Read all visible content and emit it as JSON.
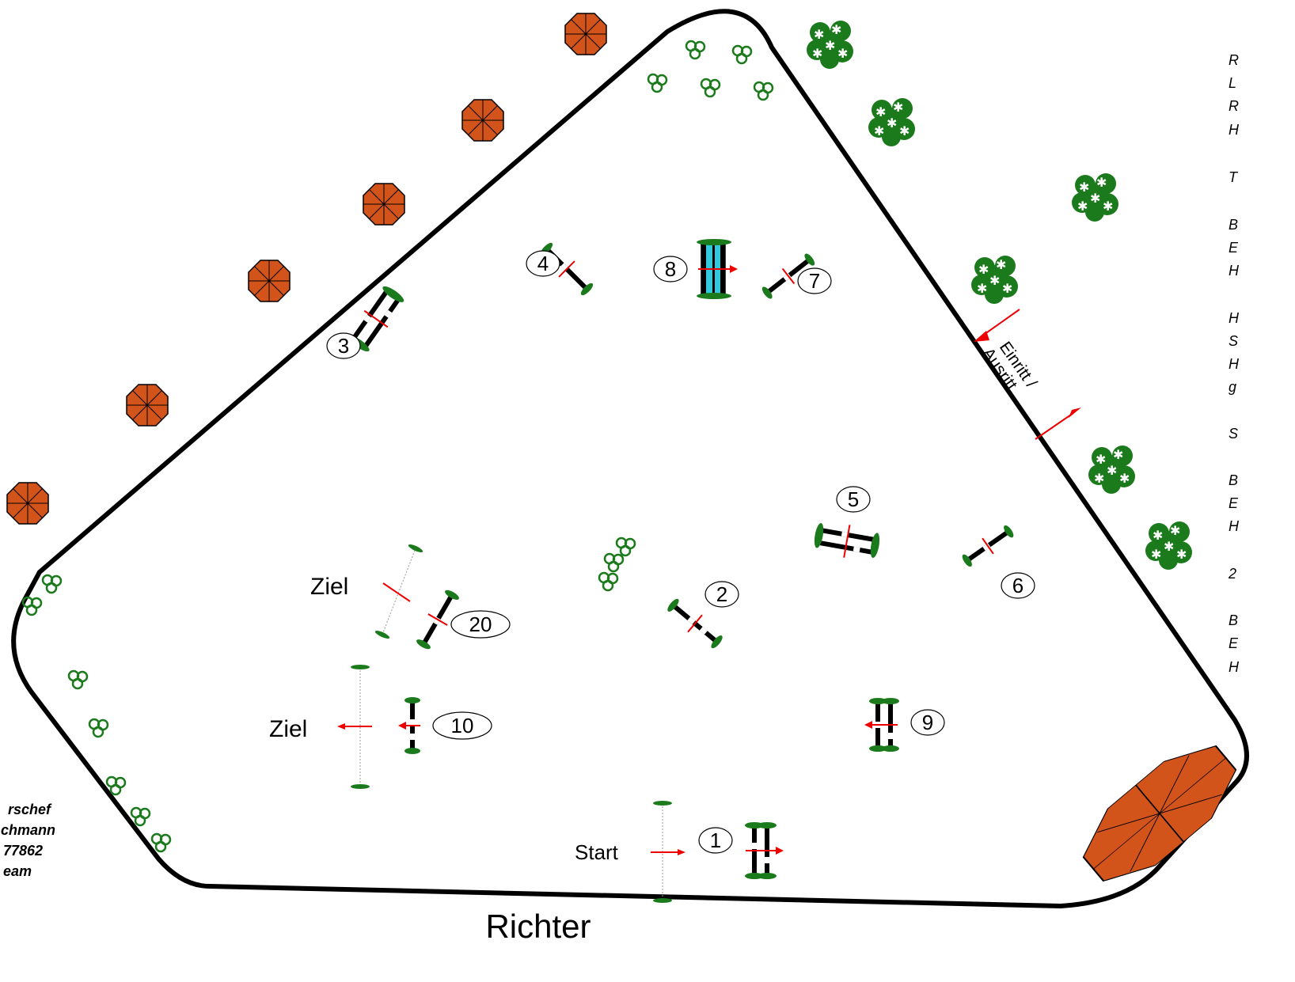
{
  "labels": {
    "richter": "Richter",
    "start": "Start",
    "ziel_1": "Ziel",
    "ziel_2": "Ziel",
    "einritt": "Einritt /",
    "ausritt": "Ausritt"
  },
  "obstacles": [
    {
      "n": "1"
    },
    {
      "n": "2"
    },
    {
      "n": "3"
    },
    {
      "n": "4"
    },
    {
      "n": "5"
    },
    {
      "n": "6"
    },
    {
      "n": "7"
    },
    {
      "n": "8"
    },
    {
      "n": "9"
    },
    {
      "n": "10"
    },
    {
      "n": "20"
    }
  ],
  "right_panel_fragments": [
    "R",
    "L",
    "R",
    "H",
    "T",
    "B",
    "E",
    "H",
    "H",
    "S",
    "H",
    "g",
    "S",
    "B",
    "E",
    "H",
    "2",
    "B",
    "E",
    "H"
  ],
  "left_panel_fragments": [
    "rschef",
    "chmann",
    "77862",
    "eam"
  ],
  "colors": {
    "arena_border": "#000000",
    "umbrella": "#d2541a",
    "tree_green": "#1b7a1b",
    "arrow_red": "#e00000",
    "water": "#33c9dd"
  }
}
